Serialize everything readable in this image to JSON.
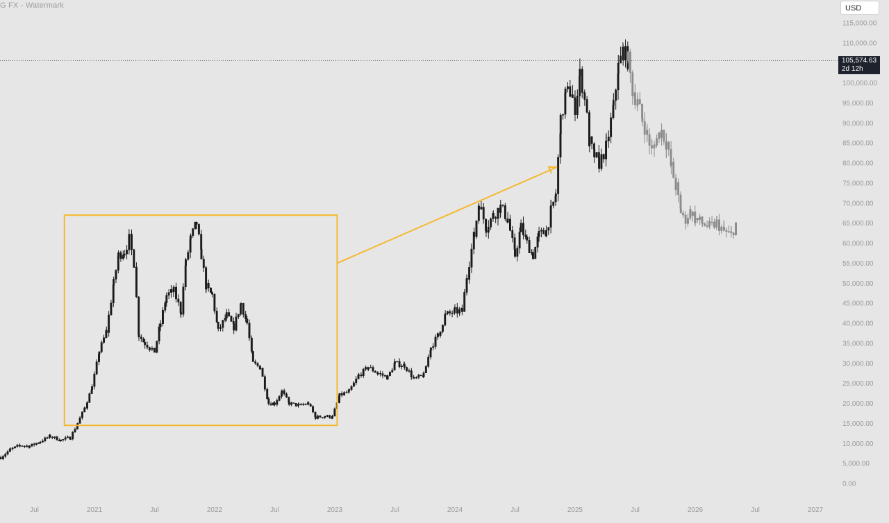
{
  "watermark": "G FX - Watermark",
  "currency": "USD",
  "current_price": {
    "label": "105,574.63",
    "countdown": "2d 12h"
  },
  "colors": {
    "background": "#e6e6e6",
    "candles": "#1a1a1a",
    "projection": "#8c8c8c",
    "highlight": "#f5b82e",
    "axis_text": "#9a9a9a"
  },
  "chart_data": {
    "type": "candlestick",
    "title": "",
    "xlabel": "",
    "ylabel": "",
    "ylim": [
      0,
      115000
    ],
    "y_ticks": [
      "115,000.00",
      "110,000.00",
      "105,000.00",
      "100,000.00",
      "95,000.00",
      "90,000.00",
      "85,000.00",
      "80,000.00",
      "75,000.00",
      "70,000.00",
      "65,000.00",
      "60,000.00",
      "55,000.00",
      "50,000.00",
      "45,000.00",
      "40,000.00",
      "35,000.00",
      "30,000.00",
      "25,000.00",
      "20,000.00",
      "15,000.00",
      "10,000.00",
      "5,000.00",
      "0.00"
    ],
    "y_tick_values": [
      115000,
      110000,
      105000,
      100000,
      95000,
      90000,
      85000,
      80000,
      75000,
      70000,
      65000,
      60000,
      55000,
      50000,
      45000,
      40000,
      35000,
      30000,
      25000,
      20000,
      15000,
      10000,
      5000,
      0
    ],
    "x_ticks": [
      {
        "label": "Jul",
        "t": 2020.5
      },
      {
        "label": "2021",
        "t": 2021.0
      },
      {
        "label": "Jul",
        "t": 2021.5
      },
      {
        "label": "2022",
        "t": 2022.0
      },
      {
        "label": "Jul",
        "t": 2022.5
      },
      {
        "label": "2023",
        "t": 2023.0
      },
      {
        "label": "Jul",
        "t": 2023.5
      },
      {
        "label": "2024",
        "t": 2024.0
      },
      {
        "label": "Jul",
        "t": 2024.5
      },
      {
        "label": "2025",
        "t": 2025.0
      },
      {
        "label": "Jul",
        "t": 2025.5
      },
      {
        "label": "2026",
        "t": 2026.0
      },
      {
        "label": "Jul",
        "t": 2026.5
      },
      {
        "label": "2027",
        "t": 2027.0
      }
    ],
    "price_line": 105574.63,
    "series": [
      {
        "kind": "actual",
        "points": [
          [
            2020.22,
            6500
          ],
          [
            2020.3,
            8500
          ],
          [
            2020.38,
            9500
          ],
          [
            2020.46,
            9300
          ],
          [
            2020.55,
            10500
          ],
          [
            2020.63,
            11800
          ],
          [
            2020.72,
            10800
          ],
          [
            2020.8,
            11500
          ],
          [
            2020.86,
            15000
          ],
          [
            2020.92,
            19000
          ],
          [
            2020.98,
            24000
          ],
          [
            2021.04,
            33000
          ],
          [
            2021.1,
            38000
          ],
          [
            2021.16,
            50000
          ],
          [
            2021.2,
            57000
          ],
          [
            2021.25,
            58000
          ],
          [
            2021.29,
            61000
          ],
          [
            2021.33,
            55000
          ],
          [
            2021.37,
            37000
          ],
          [
            2021.42,
            35000
          ],
          [
            2021.46,
            34000
          ],
          [
            2021.5,
            33000
          ],
          [
            2021.55,
            40000
          ],
          [
            2021.6,
            47000
          ],
          [
            2021.66,
            48000
          ],
          [
            2021.72,
            43000
          ],
          [
            2021.76,
            55000
          ],
          [
            2021.8,
            61000
          ],
          [
            2021.85,
            65000
          ],
          [
            2021.89,
            57000
          ],
          [
            2021.93,
            49000
          ],
          [
            2021.98,
            47000
          ],
          [
            2022.03,
            38000
          ],
          [
            2022.1,
            42000
          ],
          [
            2022.16,
            39000
          ],
          [
            2022.22,
            45000
          ],
          [
            2022.27,
            40000
          ],
          [
            2022.32,
            30000
          ],
          [
            2022.38,
            29000
          ],
          [
            2022.45,
            20000
          ],
          [
            2022.5,
            20000
          ],
          [
            2022.56,
            23000
          ],
          [
            2022.62,
            20000
          ],
          [
            2022.7,
            19500
          ],
          [
            2022.78,
            20000
          ],
          [
            2022.84,
            16500
          ],
          [
            2022.92,
            16800
          ],
          [
            2022.98,
            16600
          ],
          [
            2023.04,
            22000
          ],
          [
            2023.12,
            23000
          ],
          [
            2023.2,
            27000
          ],
          [
            2023.28,
            29000
          ],
          [
            2023.36,
            27500
          ],
          [
            2023.44,
            26500
          ],
          [
            2023.5,
            30000
          ],
          [
            2023.58,
            29500
          ],
          [
            2023.66,
            26000
          ],
          [
            2023.74,
            27000
          ],
          [
            2023.8,
            34000
          ],
          [
            2023.86,
            37000
          ],
          [
            2023.92,
            42000
          ],
          [
            2024.0,
            43000
          ],
          [
            2024.06,
            43000
          ],
          [
            2024.1,
            52000
          ],
          [
            2024.16,
            62000
          ],
          [
            2024.2,
            70000
          ],
          [
            2024.26,
            64000
          ],
          [
            2024.32,
            67000
          ],
          [
            2024.38,
            69000
          ],
          [
            2024.44,
            66000
          ],
          [
            2024.5,
            57000
          ],
          [
            2024.55,
            64000
          ],
          [
            2024.6,
            60000
          ],
          [
            2024.65,
            57000
          ],
          [
            2024.7,
            62000
          ],
          [
            2024.76,
            63000
          ],
          [
            2024.8,
            68000
          ],
          [
            2024.84,
            72000
          ],
          [
            2024.88,
            90000
          ],
          [
            2024.92,
            97000
          ],
          [
            2024.96,
            98000
          ],
          [
            2025.0,
            94000
          ],
          [
            2025.04,
            102000
          ],
          [
            2025.08,
            97000
          ],
          [
            2025.12,
            85000
          ],
          [
            2025.16,
            82000
          ],
          [
            2025.2,
            80000
          ],
          [
            2025.26,
            84000
          ],
          [
            2025.32,
            94000
          ],
          [
            2025.36,
            104000
          ],
          [
            2025.4,
            108000
          ],
          [
            2025.44,
            105574
          ]
        ]
      },
      {
        "kind": "projection",
        "points": [
          [
            2025.44,
            105574
          ],
          [
            2025.48,
            98000
          ],
          [
            2025.52,
            95000
          ],
          [
            2025.56,
            91000
          ],
          [
            2025.6,
            87000
          ],
          [
            2025.64,
            83000
          ],
          [
            2025.68,
            86000
          ],
          [
            2025.72,
            88000
          ],
          [
            2025.76,
            85000
          ],
          [
            2025.8,
            79000
          ],
          [
            2025.84,
            74000
          ],
          [
            2025.88,
            68000
          ],
          [
            2025.92,
            66000
          ],
          [
            2025.96,
            68000
          ],
          [
            2026.0,
            66000
          ],
          [
            2026.06,
            65000
          ],
          [
            2026.12,
            64000
          ],
          [
            2026.18,
            65000
          ],
          [
            2026.24,
            63000
          ],
          [
            2026.3,
            62000
          ],
          [
            2026.34,
            65000
          ]
        ]
      }
    ],
    "annotations": [
      {
        "kind": "rectangle",
        "t0": 2020.75,
        "t1": 2023.02,
        "p0": 14500,
        "p1": 67000
      },
      {
        "kind": "arrow",
        "t0": 2023.02,
        "p0": 55000,
        "t1": 2024.85,
        "p1": 79000
      }
    ]
  }
}
